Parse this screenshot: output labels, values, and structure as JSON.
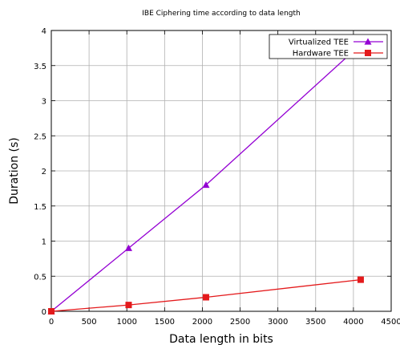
{
  "chart_data": {
    "type": "line",
    "title": "IBE Ciphering time according to data length",
    "xlabel": "Data length in bits",
    "ylabel": "Duration (s)",
    "xlim": [
      0,
      4500
    ],
    "ylim": [
      0,
      4
    ],
    "xticks": [
      "0",
      "500",
      "1000",
      "1500",
      "2000",
      "2500",
      "3000",
      "3500",
      "4000",
      "4500"
    ],
    "yticks": [
      "0",
      "0.5",
      "1",
      "1.5",
      "2",
      "2.5",
      "3",
      "3.5",
      "4"
    ],
    "grid": true,
    "legend_position": "top-right",
    "series": [
      {
        "name": "Virtualized TEE",
        "color": "#9400d3",
        "marker": "triangle",
        "x": [
          0,
          1024,
          2048,
          4096
        ],
        "y": [
          0,
          0.9,
          1.8,
          3.8
        ]
      },
      {
        "name": "Hardware TEE",
        "color": "#e41a1c",
        "marker": "square",
        "x": [
          0,
          1024,
          2048,
          4096
        ],
        "y": [
          0,
          0.09,
          0.2,
          0.45
        ]
      }
    ]
  }
}
